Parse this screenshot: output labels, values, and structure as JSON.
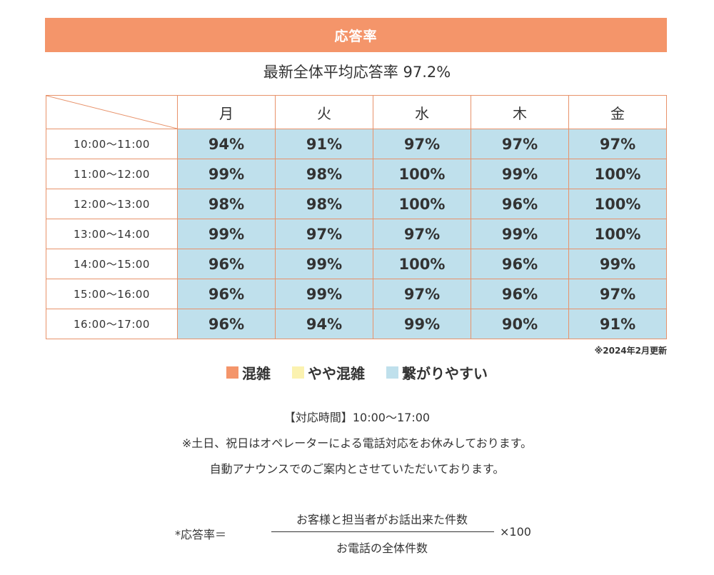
{
  "header": {
    "title": "応答率",
    "bg_color": "#f4956a"
  },
  "average": {
    "text": "最新全体平均応答率 97.2%"
  },
  "table": {
    "days": [
      "月",
      "火",
      "水",
      "木",
      "金"
    ],
    "rows": [
      {
        "time": "10:00〜11:00",
        "rates": [
          "94%",
          "91%",
          "97%",
          "97%",
          "97%"
        ]
      },
      {
        "time": "11:00〜12:00",
        "rates": [
          "99%",
          "98%",
          "100%",
          "99%",
          "100%"
        ]
      },
      {
        "time": "12:00〜13:00",
        "rates": [
          "98%",
          "98%",
          "100%",
          "96%",
          "100%"
        ]
      },
      {
        "time": "13:00〜14:00",
        "rates": [
          "99%",
          "97%",
          "97%",
          "99%",
          "100%"
        ]
      },
      {
        "time": "14:00〜15:00",
        "rates": [
          "96%",
          "99%",
          "100%",
          "96%",
          "99%"
        ]
      },
      {
        "time": "15:00〜16:00",
        "rates": [
          "96%",
          "99%",
          "97%",
          "96%",
          "97%"
        ]
      },
      {
        "time": "16:00〜17:00",
        "rates": [
          "96%",
          "94%",
          "99%",
          "90%",
          "91%"
        ]
      }
    ],
    "cell_color": "#bfe0ec",
    "border_color": "#e8926a"
  },
  "update_note": "※2024年2月更新",
  "legend": [
    {
      "label": "混雑",
      "color": "#f4956a"
    },
    {
      "label": "やや混雑",
      "color": "#fbf2b0"
    },
    {
      "label": "繋がりやすい",
      "color": "#bfe0ec"
    }
  ],
  "info": {
    "hours": "【対応時間】10:00〜17:00",
    "note1": "※土日、祝日はオペレーターによる電話対応をお休みしております。",
    "note2": "自動アナウンスでのご案内とさせていただいております。"
  },
  "formula": {
    "label": "*応答率＝",
    "numerator": "お客様と担当者がお話出来た件数",
    "denominator": "お電話の全体件数",
    "multiplier": "×100"
  }
}
